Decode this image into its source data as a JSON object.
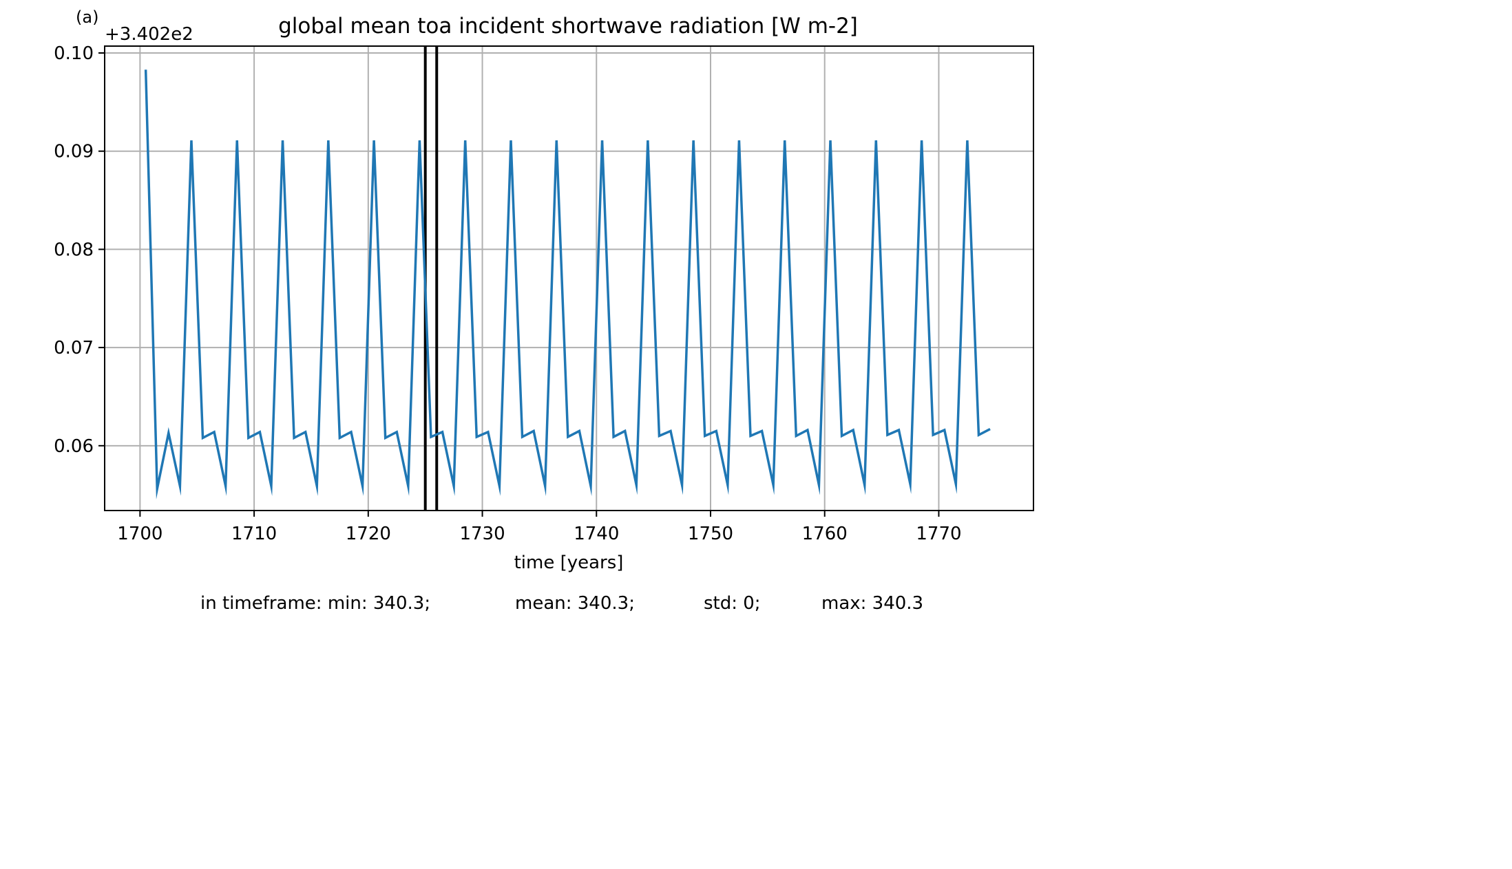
{
  "panel_label": "(a)",
  "offset_label": "+3.402e2",
  "footer": {
    "min": "in timeframe: min: 340.3;",
    "mean": "mean: 340.3;",
    "std": "std: 0;",
    "max": "max: 340.3"
  },
  "colors": {
    "series": "#1f77b4",
    "marker_line": "#000000",
    "grid": "#b0b0b0"
  },
  "chart_data": {
    "type": "line",
    "title": "global mean toa incident shortwave radiation [W m-2]",
    "xlabel": "time [years]",
    "ylabel": "",
    "xlim": [
      1696.9,
      1778.3
    ],
    "ylim": [
      0.0534,
      0.1007
    ],
    "xticks": [
      1700,
      1710,
      1720,
      1730,
      1740,
      1750,
      1760,
      1770
    ],
    "yticks": [
      0.06,
      0.07,
      0.08,
      0.09,
      0.1
    ],
    "ytick_labels": [
      "0.06",
      "0.07",
      "0.08",
      "0.09",
      "0.10"
    ],
    "grid": true,
    "vertical_lines": [
      1725.0,
      1726.0
    ],
    "series": [
      {
        "x": [
          1700.5,
          1701.5,
          1702.5,
          1703.5,
          1704.5,
          1705.5,
          1706.5,
          1707.5,
          1708.5,
          1709.5,
          1710.5,
          1711.5,
          1712.5,
          1713.5,
          1714.5,
          1715.5,
          1716.5,
          1717.5,
          1718.5,
          1719.5,
          1720.5,
          1721.5,
          1722.5,
          1723.5,
          1724.5,
          1725.5,
          1726.5,
          1727.5,
          1728.5,
          1729.5,
          1730.5,
          1731.5,
          1732.5,
          1733.5,
          1734.5,
          1735.5,
          1736.5,
          1737.5,
          1738.5,
          1739.5,
          1740.5,
          1741.5,
          1742.5,
          1743.5,
          1744.5,
          1745.5,
          1746.5,
          1747.5,
          1748.5,
          1749.5,
          1750.5,
          1751.5,
          1752.5,
          1753.5,
          1754.5,
          1755.5,
          1756.5,
          1757.5,
          1758.5,
          1759.5,
          1760.5,
          1761.5,
          1762.5,
          1763.5,
          1764.5,
          1765.5,
          1766.5,
          1767.5,
          1768.5,
          1769.5,
          1770.5,
          1771.5,
          1772.5,
          1773.5,
          1774.5
        ],
        "y": [
          0.0983,
          0.0556,
          0.0613,
          0.0559,
          0.0911,
          0.0608,
          0.0614,
          0.0559,
          0.0911,
          0.0608,
          0.0614,
          0.0559,
          0.0911,
          0.0608,
          0.0614,
          0.0559,
          0.0911,
          0.0608,
          0.0614,
          0.0559,
          0.0911,
          0.0608,
          0.0614,
          0.0559,
          0.0911,
          0.0609,
          0.0614,
          0.0559,
          0.0911,
          0.0609,
          0.0614,
          0.0559,
          0.0911,
          0.0609,
          0.0615,
          0.0559,
          0.0911,
          0.0609,
          0.0615,
          0.0559,
          0.0911,
          0.0609,
          0.0615,
          0.056,
          0.0911,
          0.061,
          0.0615,
          0.056,
          0.0911,
          0.061,
          0.0615,
          0.056,
          0.0911,
          0.061,
          0.0615,
          0.056,
          0.0911,
          0.061,
          0.0616,
          0.056,
          0.0911,
          0.061,
          0.0616,
          0.056,
          0.0911,
          0.0611,
          0.0616,
          0.0561,
          0.0911,
          0.0611,
          0.0616,
          0.0561,
          0.0911,
          0.0611,
          0.0617
        ]
      }
    ]
  }
}
